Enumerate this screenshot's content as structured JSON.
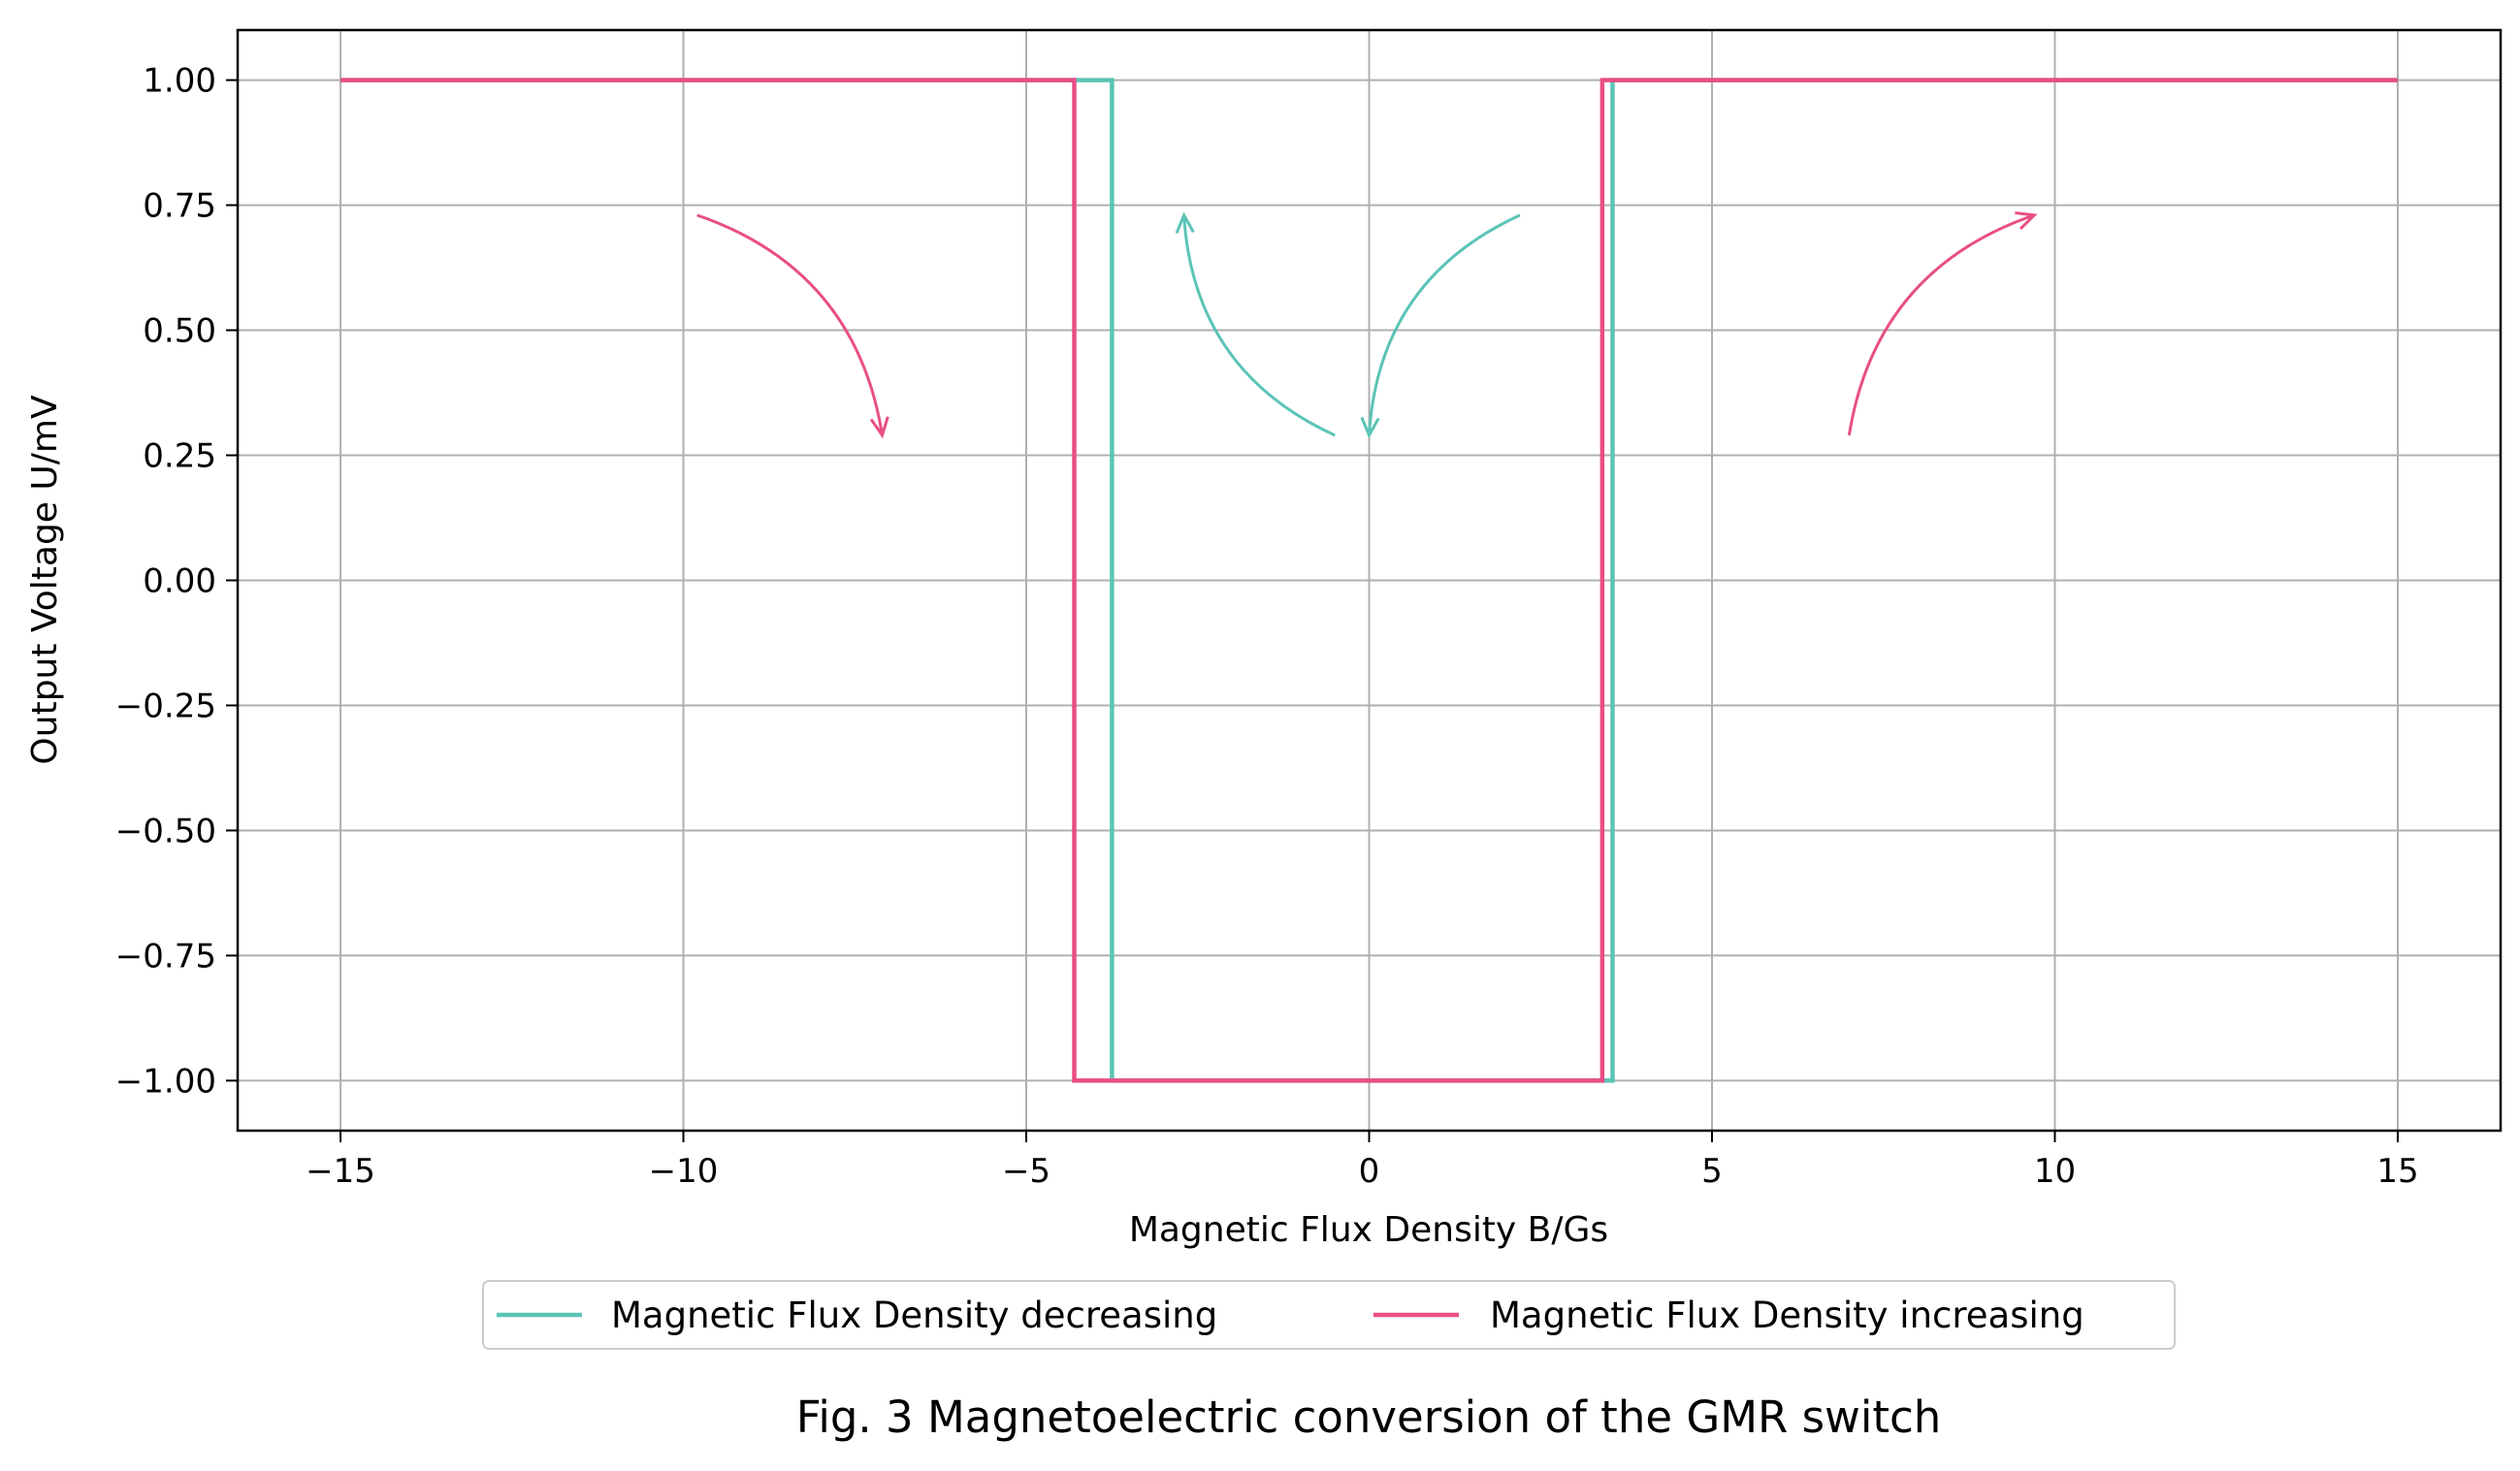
{
  "chart_data": {
    "type": "line",
    "title": "",
    "caption": "Fig. 3 Magnetoelectric conversion of the GMR switch",
    "xlabel": "Magnetic Flux Density B/Gs",
    "ylabel": "Output Voltage U/mV",
    "xlim": [
      -16.5,
      16.5
    ],
    "ylim": [
      -1.1,
      1.1
    ],
    "xticks": [
      -15,
      -10,
      -5,
      0,
      5,
      10,
      15
    ],
    "xtick_labels": [
      "−15",
      "−10",
      "−5",
      "0",
      "5",
      "10",
      "15"
    ],
    "yticks": [
      1.0,
      0.75,
      0.5,
      0.25,
      0.0,
      -0.25,
      -0.5,
      -0.75,
      -1.0
    ],
    "ytick_labels": [
      "1.00",
      "0.75",
      "0.50",
      "0.25",
      "0.00",
      "−0.25",
      "−0.50",
      "−0.75",
      "−1.00"
    ],
    "grid": true,
    "legend_position": "below-center",
    "series": [
      {
        "name": "Magnetic Flux Density decreasing",
        "color": "#5bc4b6",
        "x": [
          -15,
          -3.75,
          -3.75,
          3.55,
          3.55,
          15
        ],
        "y": [
          1,
          1,
          -1,
          -1,
          1,
          1
        ]
      },
      {
        "name": "Magnetic Flux Density increasing",
        "color": "#e84e85",
        "x": [
          -15,
          -4.3,
          -4.3,
          3.4,
          3.4,
          15
        ],
        "y": [
          1,
          1,
          -1,
          -1,
          1,
          1
        ]
      }
    ],
    "annotations": [
      {
        "name": "arrow-left-increasing",
        "color": "#e84e85",
        "from": [
          -9.8,
          0.73
        ],
        "to": [
          -7.1,
          0.29
        ],
        "curvature": -0.3
      },
      {
        "name": "arrow-center-left-decreasing",
        "color": "#5bc4b6",
        "from": [
          -0.5,
          0.29
        ],
        "to": [
          -2.7,
          0.73
        ],
        "curvature": -0.3
      },
      {
        "name": "arrow-center-right-decreasing",
        "color": "#5bc4b6",
        "from": [
          2.2,
          0.73
        ],
        "to": [
          0.0,
          0.29
        ],
        "curvature": 0.3
      },
      {
        "name": "arrow-right-increasing",
        "color": "#e84e85",
        "from": [
          7.0,
          0.29
        ],
        "to": [
          9.7,
          0.73
        ],
        "curvature": -0.3
      }
    ]
  }
}
